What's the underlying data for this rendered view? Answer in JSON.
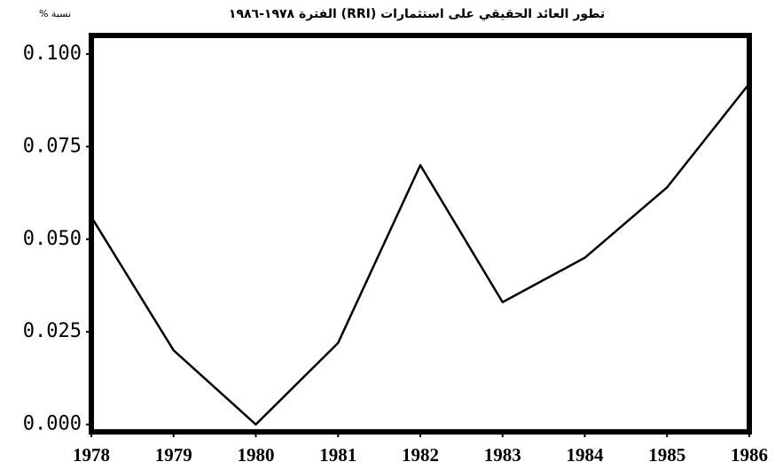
{
  "chart_data": {
    "type": "line",
    "title": "تطور العائد الحقيقي على استثمارات (RRI) الفترة ١٩٧٨-١٩٨٦",
    "y_label": "نسبة %",
    "x": [
      1978,
      1979,
      1980,
      1981,
      1982,
      1983,
      1984,
      1985,
      1986
    ],
    "series": [
      {
        "color": "#000000",
        "values": [
          0.056,
          0.02,
          0.0,
          0.022,
          0.07,
          0.033,
          0.045,
          0.064,
          0.092
        ]
      }
    ],
    "xlim": [
      1978,
      1986
    ],
    "xticks": [
      1978,
      1979,
      1980,
      1981,
      1982,
      1983,
      1984,
      1985,
      1986
    ],
    "ylim": [
      -0.002,
      0.105
    ],
    "yticks": [
      {
        "value": 0,
        "label": "0.000"
      },
      {
        "value": 0.025,
        "label": "0.025"
      },
      {
        "value": 0.05,
        "label": "0.050"
      },
      {
        "value": 0.075,
        "label": "0.075"
      },
      {
        "value": 0.1,
        "label": "0.100"
      }
    ],
    "grid": false
  }
}
